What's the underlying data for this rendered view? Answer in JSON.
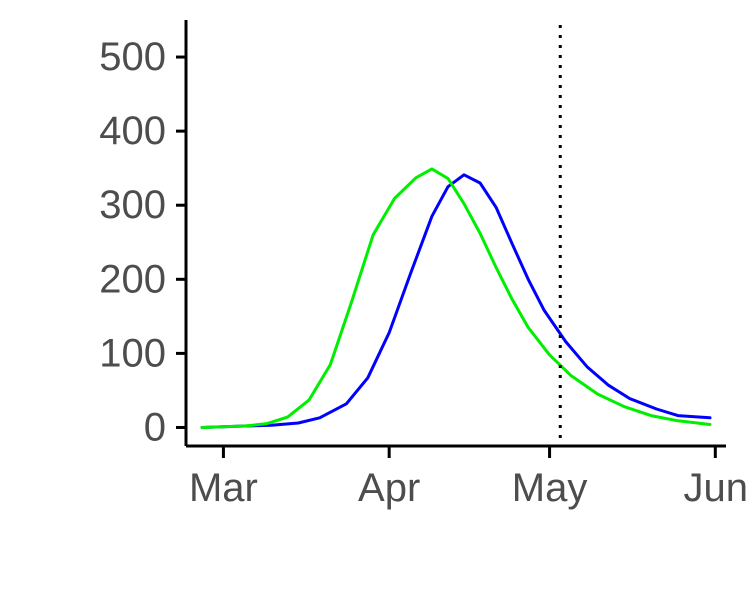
{
  "chart_data": {
    "type": "line",
    "title": "",
    "xlabel": "",
    "ylabel": "",
    "x_tick_labels": [
      "Mar",
      "Apr",
      "May",
      "Jun"
    ],
    "x_tick_dates": [
      "2020-03-01",
      "2020-04-01",
      "2020-05-01",
      "2020-06-01"
    ],
    "y_ticks": [
      0,
      100,
      200,
      300,
      400,
      500
    ],
    "xlim": [
      "2020-02-23",
      "2020-06-03"
    ],
    "ylim": [
      -25,
      550
    ],
    "grid": false,
    "legend": "none",
    "reference_line": {
      "date": "2020-05-03",
      "style": "dotted",
      "color": "#000000"
    },
    "series": [
      {
        "color": "#0000ff",
        "points": [
          [
            "2020-02-26",
            0
          ],
          [
            "2020-03-05",
            2
          ],
          [
            "2020-03-10",
            3
          ],
          [
            "2020-03-15",
            6
          ],
          [
            "2020-03-19",
            13
          ],
          [
            "2020-03-24",
            32
          ],
          [
            "2020-03-28",
            67
          ],
          [
            "2020-04-01",
            128
          ],
          [
            "2020-04-05",
            208
          ],
          [
            "2020-04-09",
            285
          ],
          [
            "2020-04-12",
            325
          ],
          [
            "2020-04-15",
            341
          ],
          [
            "2020-04-18",
            330
          ],
          [
            "2020-04-21",
            297
          ],
          [
            "2020-04-24",
            248
          ],
          [
            "2020-04-27",
            200
          ],
          [
            "2020-04-30",
            158
          ],
          [
            "2020-05-04",
            116
          ],
          [
            "2020-05-08",
            82
          ],
          [
            "2020-05-12",
            57
          ],
          [
            "2020-05-16",
            39
          ],
          [
            "2020-05-21",
            25
          ],
          [
            "2020-05-25",
            16
          ],
          [
            "2020-05-31",
            13
          ]
        ]
      },
      {
        "color": "#00ee00",
        "points": [
          [
            "2020-02-26",
            0
          ],
          [
            "2020-03-05",
            2
          ],
          [
            "2020-03-09",
            5
          ],
          [
            "2020-03-13",
            14
          ],
          [
            "2020-03-17",
            37
          ],
          [
            "2020-03-21",
            85
          ],
          [
            "2020-03-25",
            170
          ],
          [
            "2020-03-29",
            260
          ],
          [
            "2020-04-02",
            309
          ],
          [
            "2020-04-06",
            337
          ],
          [
            "2020-04-09",
            349
          ],
          [
            "2020-04-12",
            336
          ],
          [
            "2020-04-15",
            302
          ],
          [
            "2020-04-18",
            262
          ],
          [
            "2020-04-21",
            216
          ],
          [
            "2020-04-24",
            173
          ],
          [
            "2020-04-27",
            135
          ],
          [
            "2020-05-01",
            98
          ],
          [
            "2020-05-05",
            70
          ],
          [
            "2020-05-10",
            45
          ],
          [
            "2020-05-15",
            28
          ],
          [
            "2020-05-20",
            16
          ],
          [
            "2020-05-25",
            9
          ],
          [
            "2020-05-31",
            4
          ]
        ]
      }
    ]
  }
}
